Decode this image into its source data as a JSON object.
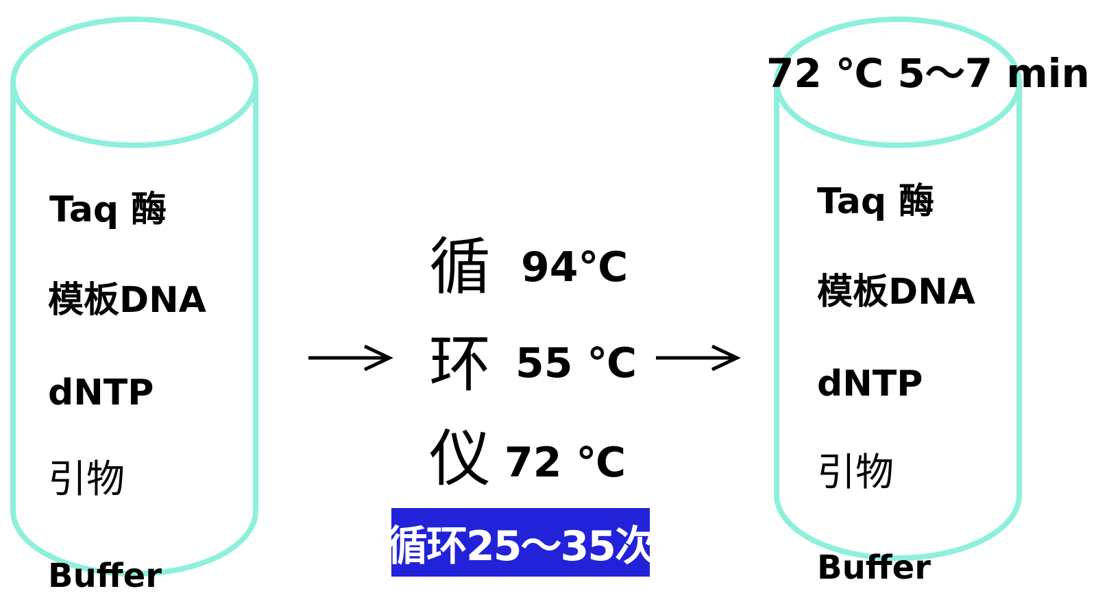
{
  "colors": {
    "tube_outline": "#8ef0dc",
    "text": "#000000",
    "cycle_box_bg": "#2222d8",
    "cycle_box_text": "#ffffff"
  },
  "left_tube": {
    "items": [
      "Taq 酶",
      "模板DNA",
      "dNTP",
      "引物",
      "Buffer"
    ]
  },
  "right_tube": {
    "final_step": "72 ℃ 5～7 min",
    "items": [
      "Taq 酶",
      "模板DNA",
      "dNTP",
      "引物",
      "Buffer"
    ]
  },
  "thermal_cycler": {
    "label_chars": [
      "循",
      "环",
      "仪"
    ],
    "steps": [
      "94℃",
      "55 ℃",
      "72 ℃"
    ],
    "cycle_count": "循环25～35次"
  },
  "arrows": [
    "arrow-right",
    "arrow-right"
  ]
}
